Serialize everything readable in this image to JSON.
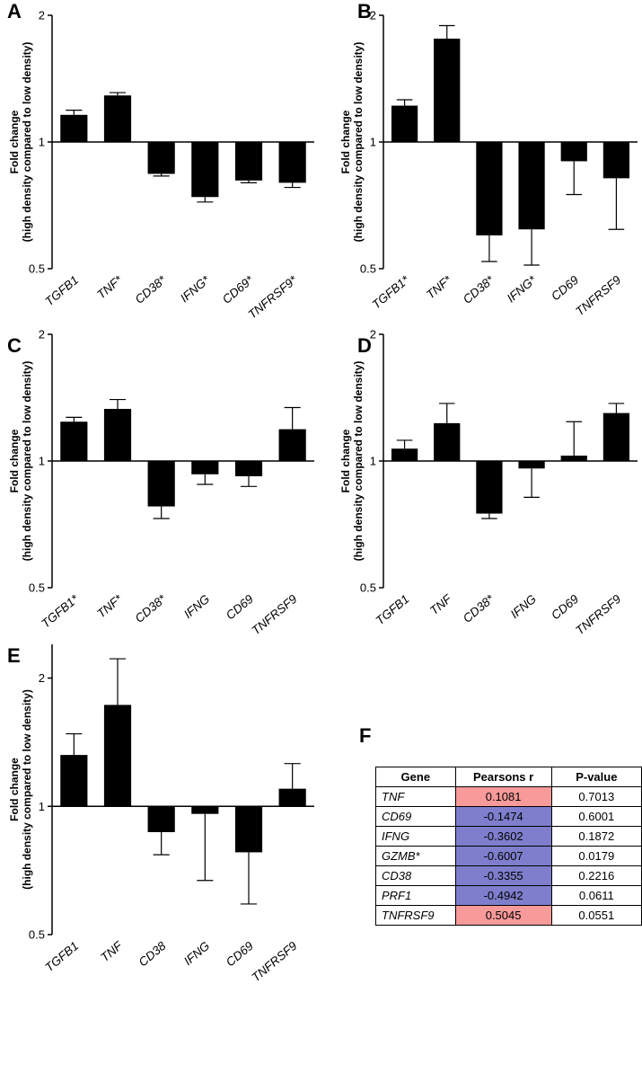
{
  "chart_data": [
    {
      "panel": "A",
      "type": "bar",
      "ylabel": "Fold change\n(high density compared to low density)",
      "yscale": "log2",
      "ylim": [
        0.5,
        2
      ],
      "yticks": [
        "0.5",
        "1",
        "2"
      ],
      "baseline": 1,
      "categories": [
        "TGFB1",
        "TNF*",
        "CD38*",
        "IFNG*",
        "CD69*",
        "TNFRSF9*"
      ],
      "values": [
        1.16,
        1.29,
        0.84,
        0.74,
        0.81,
        0.8
      ],
      "errors": [
        1.19,
        1.31,
        0.83,
        0.72,
        0.8,
        0.78
      ]
    },
    {
      "panel": "B",
      "type": "bar",
      "ylabel": "Fold change\n(high density compared to low density)",
      "yscale": "log2",
      "ylim": [
        0.5,
        2
      ],
      "yticks": [
        "0.5",
        "1",
        "2"
      ],
      "baseline": 1,
      "categories": [
        "TGFB1*",
        "TNF*",
        "CD38*",
        "IFNG*",
        "CD69",
        "TNFRSF9"
      ],
      "values": [
        1.22,
        1.76,
        0.6,
        0.62,
        0.9,
        0.82
      ],
      "errors": [
        1.26,
        1.89,
        0.52,
        0.51,
        0.75,
        0.62
      ]
    },
    {
      "panel": "C",
      "type": "bar",
      "ylabel": "Fold change\n(high density compared to low density)",
      "yscale": "log2",
      "ylim": [
        0.5,
        2
      ],
      "yticks": [
        "0.5",
        "1",
        "2"
      ],
      "baseline": 1,
      "categories": [
        "TGFB1*",
        "TNF*",
        "CD38*",
        "IFNG",
        "CD69",
        "TNFRSF9"
      ],
      "values": [
        1.24,
        1.33,
        0.78,
        0.93,
        0.92,
        1.19
      ],
      "errors": [
        1.27,
        1.4,
        0.73,
        0.88,
        0.87,
        1.34
      ]
    },
    {
      "panel": "D",
      "type": "bar",
      "ylabel": "Fold change\n(high density compared to low density)",
      "yscale": "log2",
      "ylim": [
        0.5,
        2
      ],
      "yticks": [
        "0.5",
        "1",
        "2"
      ],
      "baseline": 1,
      "categories": [
        "TGFB1",
        "TNF",
        "CD38*",
        "IFNG",
        "CD69",
        "TNFRSF9"
      ],
      "values": [
        1.07,
        1.23,
        0.75,
        0.96,
        1.03,
        1.3
      ],
      "errors": [
        1.12,
        1.37,
        0.73,
        0.82,
        1.24,
        1.37
      ]
    },
    {
      "panel": "E",
      "type": "bar",
      "ylabel": "Fold change\n(high density compared to low density)",
      "yscale": "log2",
      "ylim": [
        0.5,
        2.4
      ],
      "yticks": [
        "0.5",
        "1",
        "2"
      ],
      "baseline": 1,
      "categories": [
        "TGFB1",
        "TNF",
        "CD38",
        "IFNG",
        "CD69",
        "TNFRSF9"
      ],
      "values": [
        1.32,
        1.73,
        0.87,
        0.96,
        0.78,
        1.1
      ],
      "errors": [
        1.48,
        2.22,
        0.77,
        0.67,
        0.59,
        1.26
      ]
    },
    {
      "panel": "F",
      "type": "table",
      "columns": [
        "Gene",
        "Pearsons r",
        "P-value"
      ],
      "rows": [
        {
          "gene": "TNF",
          "r": "0.1081",
          "p": "0.7013",
          "sign": "positive"
        },
        {
          "gene": "CD69",
          "r": "-0.1474",
          "p": "0.6001",
          "sign": "negative"
        },
        {
          "gene": "IFNG",
          "r": "-0.3602",
          "p": "0.1872",
          "sign": "negative"
        },
        {
          "gene": "GZMB*",
          "r": "-0.6007",
          "p": "0.0179",
          "sign": "negative"
        },
        {
          "gene": "CD38",
          "r": "-0.3355",
          "p": "0.2216",
          "sign": "negative"
        },
        {
          "gene": "PRF1",
          "r": "-0.4942",
          "p": "0.0611",
          "sign": "negative"
        },
        {
          "gene": "TNFRSF9",
          "r": "0.5045",
          "p": "0.0551",
          "sign": "positive"
        }
      ]
    }
  ],
  "colors": {
    "bar": "#000000",
    "positive": "#f89a9a",
    "negative": "#7e7ecc"
  }
}
